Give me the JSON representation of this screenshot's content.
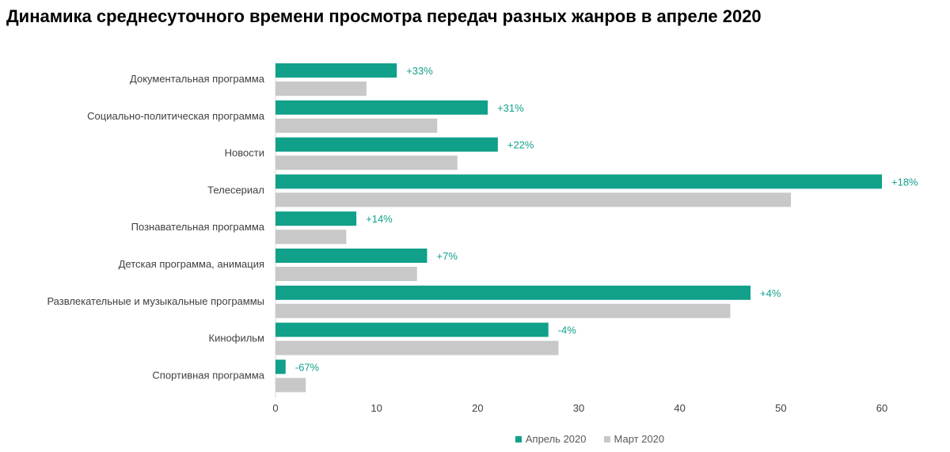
{
  "title": "Динамика среднесуточного времени просмотра передач разных жанров в апреле 2020",
  "chart_data": {
    "type": "bar",
    "orientation": "horizontal",
    "categories": [
      "Документальная программа",
      "Социально-политическая программа",
      "Новости",
      "Телесериал",
      "Познавательная программа",
      "Детская программа, анимация",
      "Развлекательные и музыкальные программы",
      "Кинофильм",
      "Спортивная программа"
    ],
    "series": [
      {
        "name": "Апрель 2020",
        "color": "#11a08a",
        "values": [
          12,
          21,
          22,
          60,
          8,
          15,
          47,
          27,
          1
        ]
      },
      {
        "name": "Март 2020",
        "color": "#c8c8c8",
        "values": [
          9,
          16,
          18,
          51,
          7,
          14,
          45,
          28,
          3
        ]
      }
    ],
    "data_labels": [
      "+33%",
      "+31%",
      "+22%",
      "+18%",
      "+14%",
      "+7%",
      "+4%",
      "-4%",
      "-67%"
    ],
    "xlim": [
      0,
      60
    ],
    "xticks": [
      0,
      10,
      20,
      30,
      40,
      50,
      60
    ],
    "grid": false,
    "legend_position": "bottom"
  }
}
